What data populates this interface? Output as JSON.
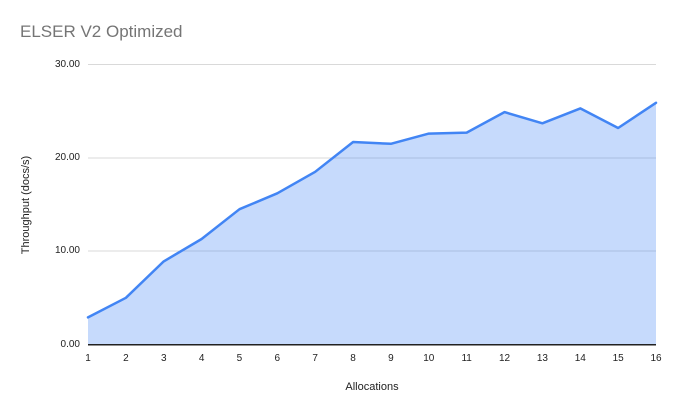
{
  "chart_data": {
    "type": "area",
    "title": "ELSER V2 Optimized",
    "xlabel": "Allocations",
    "ylabel": "Throughput (docs/s)",
    "x": [
      1,
      2,
      3,
      4,
      5,
      6,
      7,
      8,
      9,
      10,
      11,
      12,
      13,
      14,
      15,
      16
    ],
    "series": [
      {
        "name": "Throughput",
        "values": [
          2.9,
          5.0,
          8.9,
          11.3,
          14.5,
          16.2,
          18.5,
          21.7,
          21.5,
          22.6,
          22.7,
          24.9,
          23.7,
          25.3,
          23.2,
          25.9
        ]
      }
    ],
    "ylim": [
      0,
      30
    ],
    "yticks": [
      {
        "value": 0,
        "label": "0.00"
      },
      {
        "value": 10,
        "label": "10.00"
      },
      {
        "value": 20,
        "label": "20.00"
      },
      {
        "value": 30,
        "label": "30.00"
      }
    ],
    "grid": true,
    "legend_position": "none",
    "colors": {
      "line": "#4285f4",
      "fill": "rgba(66,133,244,0.3)",
      "grid": "#d9d9d9",
      "axis": "#212121",
      "title_text": "#757575",
      "label_text": "#222222",
      "background": "#ffffff"
    }
  }
}
